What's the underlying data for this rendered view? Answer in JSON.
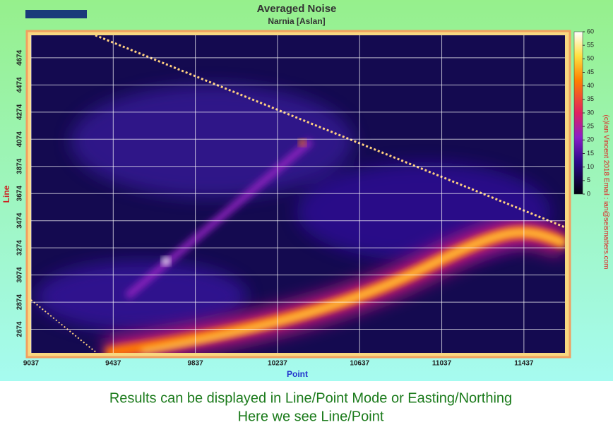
{
  "chart_data": {
    "type": "heatmap",
    "title": "Averaged Noise",
    "subtitle": "Narnia [Aslan]",
    "x_label": "Point",
    "y_label": "Line",
    "xlim": [
      9037,
      11637
    ],
    "xticks": [
      9037,
      9437,
      9837,
      10237,
      10637,
      11037,
      11437
    ],
    "ylim": [
      2500,
      4840
    ],
    "yticks": [
      2674,
      2874,
      3074,
      3274,
      3474,
      3674,
      3874,
      4074,
      4274,
      4474,
      4674
    ],
    "grid": true,
    "colorbar": {
      "lim": [
        0,
        60
      ],
      "ticks": [
        0,
        5,
        10,
        15,
        20,
        25,
        30,
        35,
        40,
        45,
        50,
        55,
        60
      ]
    },
    "credit": "(c)Ian Vincent 2018  Email : ian@seismatters.com"
  },
  "caption": {
    "lines": [
      "Results can be displayed in Line/Point Mode or Easting/Northing",
      "Here we see Line/Point"
    ]
  }
}
